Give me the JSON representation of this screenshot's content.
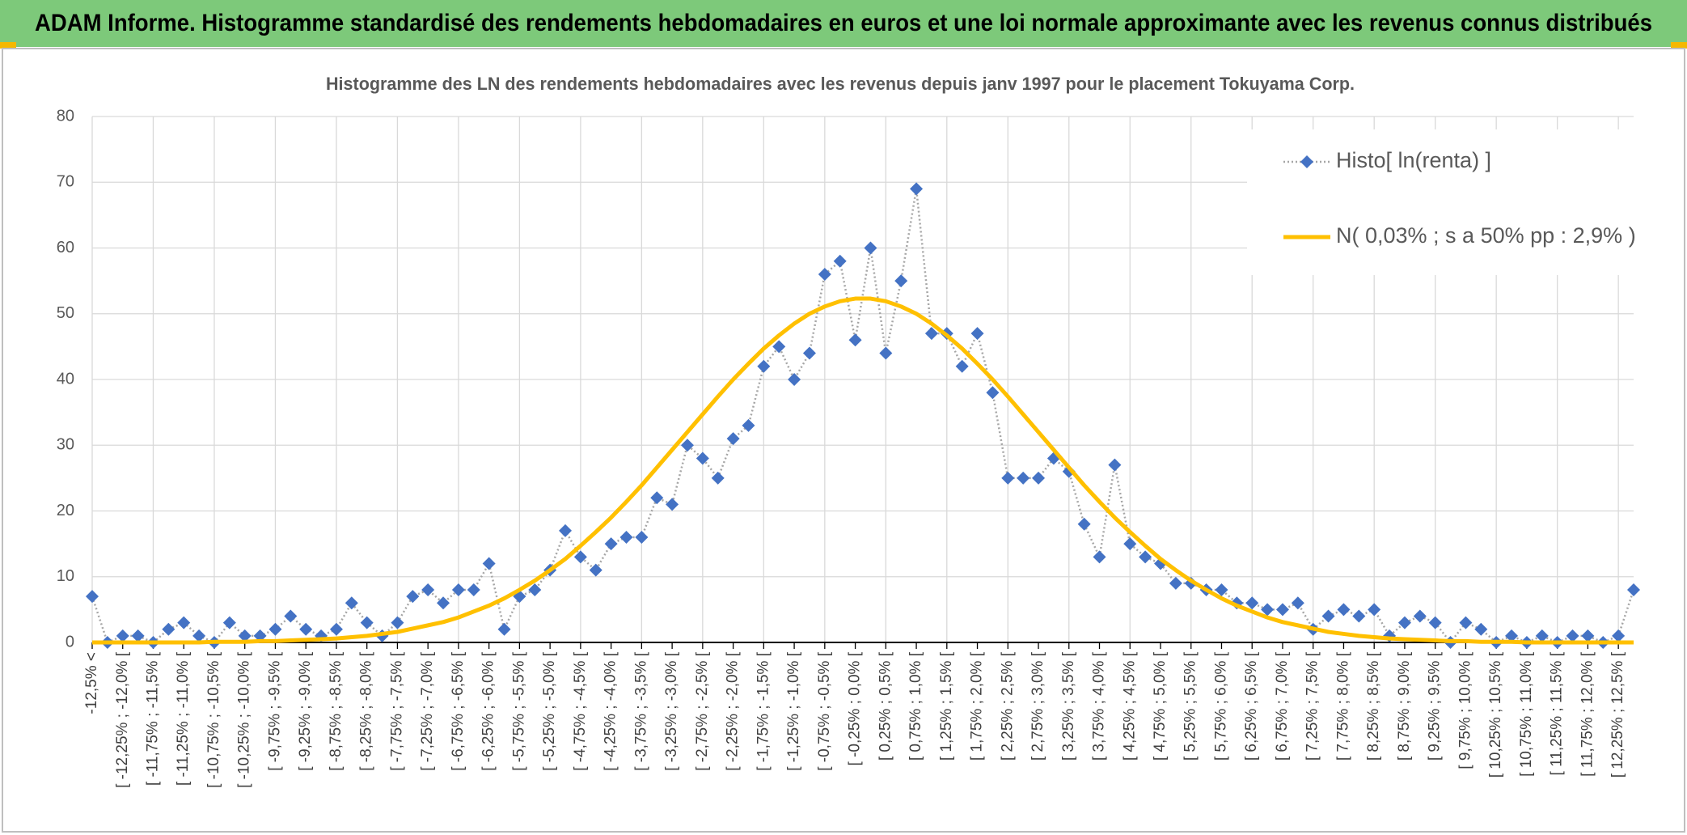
{
  "chart_data": {
    "type": "line",
    "title": "ADAM Informe. Histogramme standardisé des rendements hebdomadaires en euros et une loi normale approximante avec les revenus connus distribués",
    "subtitle": "Histogramme des LN des rendements hebdomadaires avec les revenus depuis janv 1997 pour le placement Tokuyama Corp.",
    "categories": [
      "-12,5% <",
      null,
      "[ -12,25% ; -12,0% [",
      null,
      "[ -11,75% ; -11,5% [",
      null,
      "[ -11,25% ; -11,0% [",
      null,
      "[ -10,75% ; -10,5% [",
      null,
      "[ -10,25% ; -10,0% [",
      null,
      "[ -9,75% ; -9,5% [",
      null,
      "[ -9,25% ; -9,0% [",
      null,
      "[ -8,75% ; -8,5% [",
      null,
      "[ -8,25% ; -8,0% [",
      null,
      "[ -7,75% ; -7,5% [",
      null,
      "[ -7,25% ; -7,0% [",
      null,
      "[ -6,75% ; -6,5% [",
      null,
      "[ -6,25% ; -6,0% [",
      null,
      "[ -5,75% ; -5,5% [",
      null,
      "[ -5,25% ; -5,0% [",
      null,
      "[ -4,75% ; -4,5% [",
      null,
      "[ -4,25% ; -4,0% [",
      null,
      "[ -3,75% ; -3,5% [",
      null,
      "[ -3,25% ; -3,0% [",
      null,
      "[ -2,75% ; -2,5% [",
      null,
      "[ -2,25% ; -2,0% [",
      null,
      "[ -1,75% ; -1,5% [",
      null,
      "[ -1,25% ; -1,0% [",
      null,
      "[ -0,75% ; -0,5% [",
      null,
      "[ -0,25% ; 0,0% [",
      null,
      "[ 0,25% ; 0,5% [",
      null,
      "[ 0,75% ; 1,0% [",
      null,
      "[ 1,25% ; 1,5% [",
      null,
      "[ 1,75% ; 2,0% [",
      null,
      "[ 2,25% ; 2,5% [",
      null,
      "[ 2,75% ; 3,0% [",
      null,
      "[ 3,25% ; 3,5% [",
      null,
      "[ 3,75% ; 4,0% [",
      null,
      "[ 4,25% ; 4,5% [",
      null,
      "[ 4,75% ; 5,0% [",
      null,
      "[ 5,25% ; 5,5% [",
      null,
      "[ 5,75% ; 6,0% [",
      null,
      "[ 6,25% ; 6,5% [",
      null,
      "[ 6,75% ; 7,0% [",
      null,
      "[ 7,25% ; 7,5% [",
      null,
      "[ 7,75% ; 8,0% [",
      null,
      "[ 8,25% ; 8,5% [",
      null,
      "[ 8,75% ; 9,0% [",
      null,
      "[ 9,25% ; 9,5% [",
      null,
      "[ 9,75% ; 10,0% [",
      null,
      "[ 10,25% ; 10,5% [",
      null,
      "[ 10,75% ; 11,0% [",
      null,
      "[ 11,25% ; 11,5% [",
      null,
      "[ 11,75% ; 12,0% [",
      null,
      "[ 12,25% ; 12,5% [",
      null
    ],
    "series": [
      {
        "name": "Histo[ ln(renta) ]",
        "color": "#4472c4",
        "line_color": "#a6a6a6",
        "marker": "diamond",
        "line_style": "dotted",
        "values": [
          7,
          0,
          1,
          1,
          0,
          2,
          3,
          1,
          0,
          3,
          1,
          1,
          2,
          4,
          2,
          1,
          2,
          6,
          3,
          1,
          3,
          7,
          8,
          6,
          8,
          8,
          12,
          2,
          7,
          8,
          11,
          17,
          13,
          11,
          15,
          16,
          16,
          22,
          21,
          30,
          28,
          25,
          31,
          33,
          42,
          45,
          40,
          44,
          56,
          58,
          46,
          60,
          44,
          55,
          69,
          47,
          47,
          42,
          47,
          38,
          25,
          25,
          25,
          28,
          26,
          18,
          13,
          27,
          15,
          13,
          12,
          9,
          9,
          8,
          8,
          6,
          6,
          5,
          5,
          6,
          2,
          4,
          5,
          4,
          5,
          1,
          3,
          4,
          3,
          0,
          3,
          2,
          0,
          1,
          0,
          1,
          0,
          1,
          1,
          0,
          1,
          8
        ]
      },
      {
        "name": "N( 0,03% ; s a 50% pp : 2,9% )",
        "color": "#ffc000",
        "marker": "none",
        "line_style": "solid",
        "values": [
          0,
          0,
          0,
          0,
          0,
          0,
          0,
          0,
          0.1,
          0.1,
          0.1,
          0.2,
          0.2,
          0.3,
          0.4,
          0.5,
          0.6,
          0.8,
          1.0,
          1.3,
          1.6,
          2.1,
          2.6,
          3.1,
          3.8,
          4.7,
          5.6,
          6.7,
          8.0,
          9.4,
          11.0,
          12.7,
          14.7,
          16.8,
          19.0,
          21.4,
          23.9,
          26.6,
          29.3,
          32.0,
          34.7,
          37.4,
          40.0,
          42.4,
          44.7,
          46.7,
          48.5,
          50.0,
          51.1,
          51.9,
          52.3,
          52.3,
          51.9,
          51.1,
          50.0,
          48.5,
          46.7,
          44.7,
          42.4,
          40.0,
          37.4,
          34.7,
          32.0,
          29.3,
          26.6,
          23.9,
          21.4,
          19.0,
          16.8,
          14.7,
          12.7,
          11.0,
          9.4,
          8.0,
          6.7,
          5.6,
          4.7,
          3.8,
          3.1,
          2.6,
          2.1,
          1.6,
          1.3,
          1.0,
          0.8,
          0.6,
          0.5,
          0.4,
          0.3,
          0.2,
          0.2,
          0.1,
          0.1,
          0.1,
          0,
          0,
          0,
          0,
          0,
          0,
          0,
          0
        ]
      }
    ],
    "ylim": [
      0,
      80
    ],
    "yticks": [
      0,
      10,
      20,
      30,
      40,
      50,
      60,
      70,
      80
    ],
    "grid": true,
    "legend": "top-right"
  }
}
